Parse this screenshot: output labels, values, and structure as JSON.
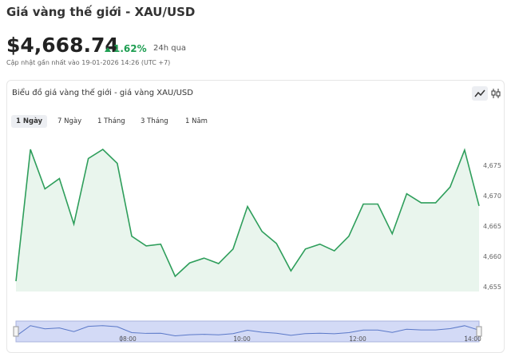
{
  "header": {
    "title": "Giá vàng thế giới - XAU/USD",
    "price": "$4,668.74",
    "change": "1.62%",
    "change_period": "24h qua",
    "updated": "Cập nhật gần nhất vào 19-01-2026 14:26 (UTC +7)"
  },
  "card": {
    "title": "Biểu đồ giá vàng thế giới - giá vàng XAU/USD",
    "tabs": [
      "1 Ngày",
      "7 Ngày",
      "1 Tháng",
      "3 Tháng",
      "1 Năm"
    ],
    "active_tab": 0
  },
  "chart_data": {
    "type": "area",
    "color": "#2e9e5b",
    "fill": "#e9f5ed",
    "values": [
      4655.9,
      4677.6,
      4671.1,
      4672.8,
      4665.3,
      4676.1,
      4677.6,
      4675.3,
      4663.3,
      4661.7,
      4662.0,
      4656.7,
      4658.9,
      4659.7,
      4658.8,
      4661.2,
      4668.2,
      4664.1,
      4662.1,
      4657.6,
      4661.2,
      4662.0,
      4660.9,
      4663.3,
      4668.6,
      4668.6,
      4663.7,
      4670.3,
      4668.8,
      4668.8,
      4671.4,
      4677.5,
      4668.3
    ],
    "ylim": [
      4654.2,
      4680.5
    ],
    "yticks": [
      {
        "value": 4655,
        "label": "4,655"
      },
      {
        "value": 4660,
        "label": "4,660"
      },
      {
        "value": 4665,
        "label": "4,665"
      },
      {
        "value": 4670,
        "label": "4,670"
      },
      {
        "value": 4675,
        "label": "4,675"
      }
    ],
    "navigator_labels": [
      "08:00",
      "10:00",
      "12:00",
      "14:00"
    ]
  }
}
